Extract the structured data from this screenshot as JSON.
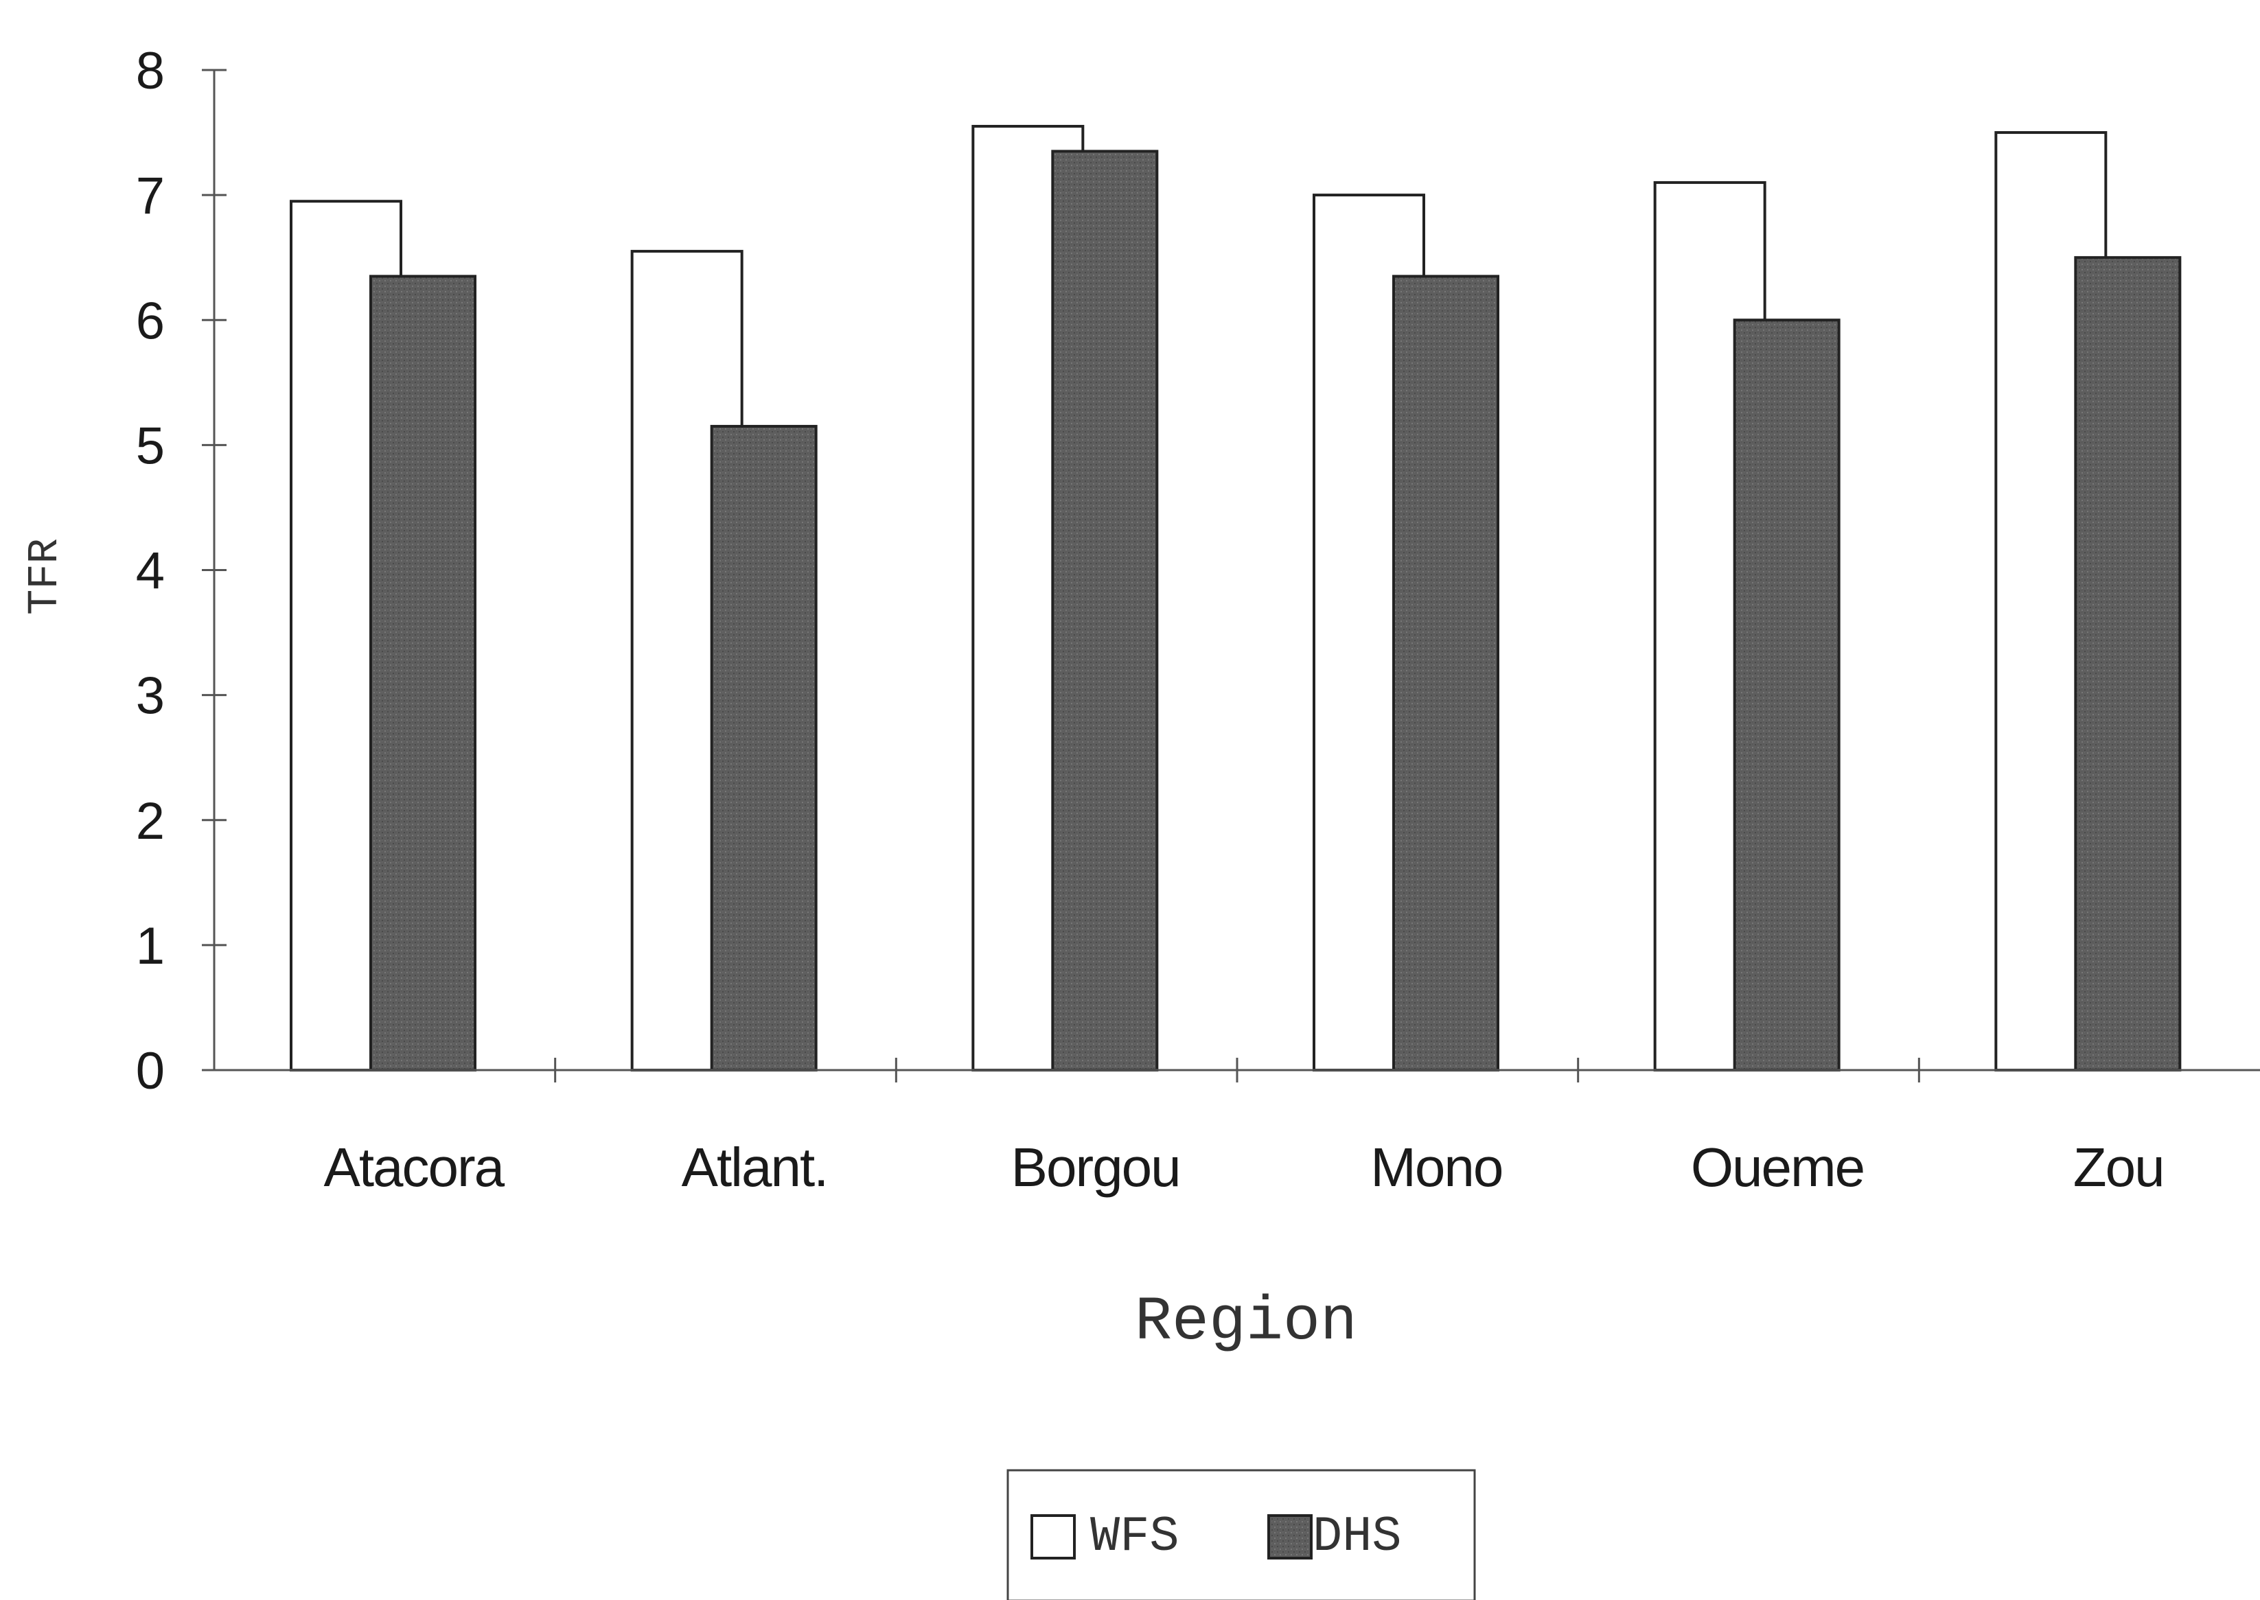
{
  "chart_data": {
    "type": "bar",
    "title": "",
    "xlabel": "Region",
    "ylabel": "TFR",
    "categories": [
      "Atacora",
      "Atlant.",
      "Borgou",
      "Mono",
      "Oueme",
      "Zou"
    ],
    "series": [
      {
        "name": "WFS",
        "values": [
          6.95,
          6.55,
          7.55,
          7.0,
          7.1,
          7.5
        ]
      },
      {
        "name": "DHS",
        "values": [
          6.35,
          5.15,
          7.35,
          6.35,
          6.0,
          6.5
        ]
      }
    ],
    "ylim": [
      0,
      8
    ],
    "yticks": [
      "0",
      "1",
      "2",
      "3",
      "4",
      "5",
      "6",
      "7",
      "8"
    ],
    "grid": false,
    "legend_position": "bottom-center",
    "colors": {
      "WFS": "#ffffff",
      "DHS": "#5e5e5e",
      "axis": "#555555"
    }
  }
}
